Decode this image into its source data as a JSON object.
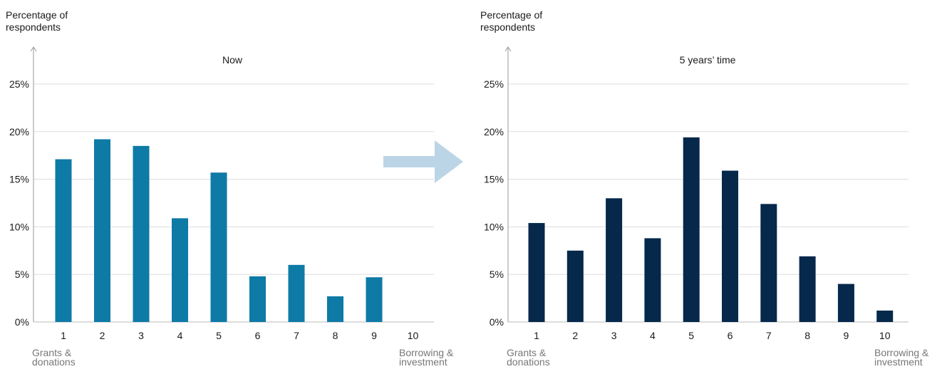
{
  "chart_data": [
    {
      "type": "bar",
      "title": "Now",
      "ylabel": "Percentage of respondents",
      "categories": [
        "1",
        "2",
        "3",
        "4",
        "5",
        "6",
        "7",
        "8",
        "9",
        "10"
      ],
      "values": [
        17.1,
        19.2,
        18.5,
        10.9,
        15.7,
        4.8,
        6.0,
        2.7,
        4.7,
        0
      ],
      "ylim": [
        0,
        25
      ],
      "yticks": [
        "0%",
        "5%",
        "10%",
        "15%",
        "20%",
        "25%"
      ],
      "x_start_label": "Grants & donations",
      "x_end_label": "Borrowing & investment",
      "color": "#0e7aa6",
      "grid": true,
      "legend": "none"
    },
    {
      "type": "bar",
      "title": "5 years’ time",
      "ylabel": "Percentage of respondents",
      "categories": [
        "1",
        "2",
        "3",
        "4",
        "5",
        "6",
        "7",
        "8",
        "9",
        "10"
      ],
      "values": [
        10.4,
        7.5,
        13.0,
        8.8,
        19.4,
        15.9,
        12.4,
        6.9,
        4.0,
        1.2
      ],
      "ylim": [
        0,
        25
      ],
      "yticks": [
        "0%",
        "5%",
        "10%",
        "15%",
        "20%",
        "25%"
      ],
      "x_start_label": "Grants & donations",
      "x_end_label": "Borrowing & investment",
      "color": "#05284b",
      "grid": true,
      "legend": "none"
    }
  ],
  "arrow_color": "#bcd5e6",
  "grid_color": "#dddddd",
  "axis_color": "#999999",
  "end_label_color": "#777777"
}
